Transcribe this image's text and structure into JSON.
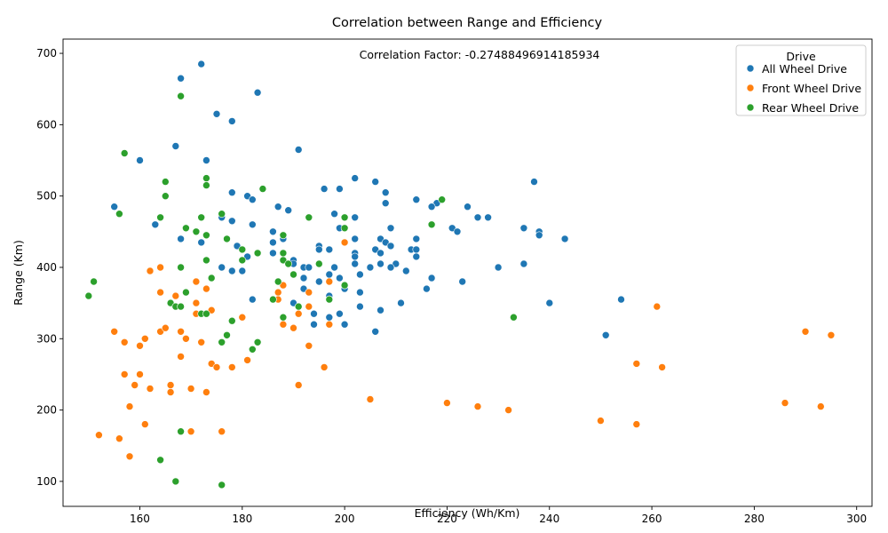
{
  "chart_data": {
    "type": "scatter",
    "title": "Correlation between Range and Efficiency",
    "xlabel": "Efficiency (Wh/Km)",
    "ylabel": "Range (Km)",
    "xlim": [
      145,
      303
    ],
    "ylim": [
      65,
      720
    ],
    "xticks": [
      160,
      180,
      200,
      220,
      240,
      260,
      280,
      300
    ],
    "yticks": [
      100,
      200,
      300,
      400,
      500,
      600,
      700
    ],
    "grid": false,
    "annotation": "Correlation Factor: -0.27488496914185934",
    "legend": {
      "title": "Drive",
      "placement": "top-right"
    },
    "series": [
      {
        "name": "All Wheel Drive",
        "color": "#1f77b4",
        "points": [
          [
            168,
            665
          ],
          [
            172,
            685
          ],
          [
            183,
            645
          ],
          [
            175,
            615
          ],
          [
            178,
            605
          ],
          [
            167,
            570
          ],
          [
            191,
            565
          ],
          [
            160,
            550
          ],
          [
            173,
            550
          ],
          [
            237,
            520
          ],
          [
            206,
            520
          ],
          [
            202,
            525
          ],
          [
            196,
            510
          ],
          [
            199,
            510
          ],
          [
            208,
            505
          ],
          [
            178,
            505
          ],
          [
            181,
            500
          ],
          [
            182,
            495
          ],
          [
            155,
            485
          ],
          [
            187,
            485
          ],
          [
            189,
            480
          ],
          [
            214,
            495
          ],
          [
            218,
            490
          ],
          [
            217,
            485
          ],
          [
            208,
            490
          ],
          [
            224,
            485
          ],
          [
            198,
            475
          ],
          [
            202,
            470
          ],
          [
            226,
            470
          ],
          [
            228,
            470
          ],
          [
            176,
            470
          ],
          [
            178,
            465
          ],
          [
            163,
            460
          ],
          [
            182,
            460
          ],
          [
            209,
            455
          ],
          [
            199,
            455
          ],
          [
            221,
            455
          ],
          [
            222,
            450
          ],
          [
            235,
            455
          ],
          [
            238,
            450
          ],
          [
            238,
            445
          ],
          [
            243,
            440
          ],
          [
            168,
            440
          ],
          [
            186,
            450
          ],
          [
            188,
            440
          ],
          [
            186,
            435
          ],
          [
            172,
            435
          ],
          [
            207,
            440
          ],
          [
            214,
            440
          ],
          [
            202,
            440
          ],
          [
            208,
            435
          ],
          [
            209,
            430
          ],
          [
            213,
            425
          ],
          [
            214,
            425
          ],
          [
            195,
            430
          ],
          [
            195,
            425
          ],
          [
            197,
            425
          ],
          [
            206,
            425
          ],
          [
            207,
            420
          ],
          [
            202,
            420
          ],
          [
            202,
            415
          ],
          [
            214,
            415
          ],
          [
            186,
            420
          ],
          [
            181,
            415
          ],
          [
            179,
            430
          ],
          [
            190,
            410
          ],
          [
            190,
            405
          ],
          [
            210,
            405
          ],
          [
            202,
            405
          ],
          [
            207,
            405
          ],
          [
            205,
            400
          ],
          [
            209,
            400
          ],
          [
            212,
            395
          ],
          [
            230,
            400
          ],
          [
            235,
            405
          ],
          [
            192,
            400
          ],
          [
            193,
            400
          ],
          [
            198,
            400
          ],
          [
            176,
            400
          ],
          [
            178,
            395
          ],
          [
            180,
            395
          ],
          [
            192,
            385
          ],
          [
            195,
            380
          ],
          [
            199,
            385
          ],
          [
            197,
            390
          ],
          [
            203,
            390
          ],
          [
            217,
            385
          ],
          [
            223,
            380
          ],
          [
            211,
            350
          ],
          [
            240,
            350
          ],
          [
            254,
            355
          ],
          [
            251,
            305
          ],
          [
            182,
            355
          ],
          [
            190,
            350
          ],
          [
            192,
            370
          ],
          [
            194,
            335
          ],
          [
            194,
            320
          ],
          [
            197,
            360
          ],
          [
            197,
            355
          ],
          [
            197,
            330
          ],
          [
            199,
            335
          ],
          [
            200,
            320
          ],
          [
            200,
            370
          ],
          [
            200,
            375
          ],
          [
            203,
            365
          ],
          [
            203,
            345
          ],
          [
            207,
            340
          ],
          [
            206,
            310
          ],
          [
            216,
            370
          ]
        ]
      },
      {
        "name": "Front Wheel Drive",
        "color": "#ff7f0e",
        "points": [
          [
            155,
            310
          ],
          [
            157,
            295
          ],
          [
            152,
            165
          ],
          [
            156,
            160
          ],
          [
            158,
            135
          ],
          [
            157,
            250
          ],
          [
            160,
            250
          ],
          [
            158,
            205
          ],
          [
            159,
            235
          ],
          [
            160,
            290
          ],
          [
            161,
            300
          ],
          [
            161,
            180
          ],
          [
            162,
            230
          ],
          [
            162,
            395
          ],
          [
            164,
            400
          ],
          [
            164,
            365
          ],
          [
            164,
            310
          ],
          [
            165,
            315
          ],
          [
            166,
            225
          ],
          [
            166,
            235
          ],
          [
            167,
            360
          ],
          [
            168,
            310
          ],
          [
            168,
            275
          ],
          [
            169,
            300
          ],
          [
            170,
            230
          ],
          [
            170,
            170
          ],
          [
            171,
            380
          ],
          [
            171,
            350
          ],
          [
            171,
            335
          ],
          [
            172,
            295
          ],
          [
            173,
            370
          ],
          [
            173,
            225
          ],
          [
            174,
            340
          ],
          [
            174,
            265
          ],
          [
            175,
            260
          ],
          [
            176,
            170
          ],
          [
            178,
            260
          ],
          [
            180,
            330
          ],
          [
            181,
            270
          ],
          [
            187,
            365
          ],
          [
            187,
            355
          ],
          [
            188,
            375
          ],
          [
            188,
            320
          ],
          [
            190,
            315
          ],
          [
            191,
            335
          ],
          [
            191,
            235
          ],
          [
            193,
            365
          ],
          [
            193,
            345
          ],
          [
            193,
            290
          ],
          [
            196,
            260
          ],
          [
            197,
            380
          ],
          [
            197,
            320
          ],
          [
            200,
            435
          ],
          [
            205,
            215
          ],
          [
            220,
            210
          ],
          [
            226,
            205
          ],
          [
            232,
            200
          ],
          [
            250,
            185
          ],
          [
            257,
            265
          ],
          [
            257,
            180
          ],
          [
            261,
            345
          ],
          [
            262,
            260
          ],
          [
            286,
            210
          ],
          [
            290,
            310
          ],
          [
            293,
            205
          ],
          [
            295,
            305
          ]
        ]
      },
      {
        "name": "Rear Wheel Drive",
        "color": "#2ca02c",
        "points": [
          [
            168,
            640
          ],
          [
            157,
            560
          ],
          [
            165,
            520
          ],
          [
            165,
            500
          ],
          [
            156,
            475
          ],
          [
            164,
            470
          ],
          [
            173,
            525
          ],
          [
            173,
            515
          ],
          [
            172,
            470
          ],
          [
            176,
            475
          ],
          [
            184,
            510
          ],
          [
            169,
            455
          ],
          [
            171,
            450
          ],
          [
            173,
            445
          ],
          [
            177,
            440
          ],
          [
            180,
            425
          ],
          [
            183,
            420
          ],
          [
            188,
            445
          ],
          [
            188,
            420
          ],
          [
            188,
            410
          ],
          [
            180,
            410
          ],
          [
            173,
            410
          ],
          [
            168,
            400
          ],
          [
            151,
            380
          ],
          [
            150,
            360
          ],
          [
            166,
            350
          ],
          [
            167,
            345
          ],
          [
            168,
            345
          ],
          [
            169,
            365
          ],
          [
            172,
            335
          ],
          [
            173,
            335
          ],
          [
            174,
            385
          ],
          [
            178,
            325
          ],
          [
            177,
            305
          ],
          [
            176,
            295
          ],
          [
            183,
            295
          ],
          [
            182,
            285
          ],
          [
            187,
            380
          ],
          [
            186,
            355
          ],
          [
            188,
            330
          ],
          [
            189,
            405
          ],
          [
            190,
            390
          ],
          [
            191,
            345
          ],
          [
            193,
            470
          ],
          [
            195,
            405
          ],
          [
            197,
            355
          ],
          [
            200,
            470
          ],
          [
            200,
            455
          ],
          [
            200,
            375
          ],
          [
            217,
            460
          ],
          [
            219,
            495
          ],
          [
            233,
            330
          ],
          [
            168,
            170
          ],
          [
            164,
            130
          ],
          [
            167,
            100
          ],
          [
            176,
            95
          ]
        ]
      }
    ]
  }
}
